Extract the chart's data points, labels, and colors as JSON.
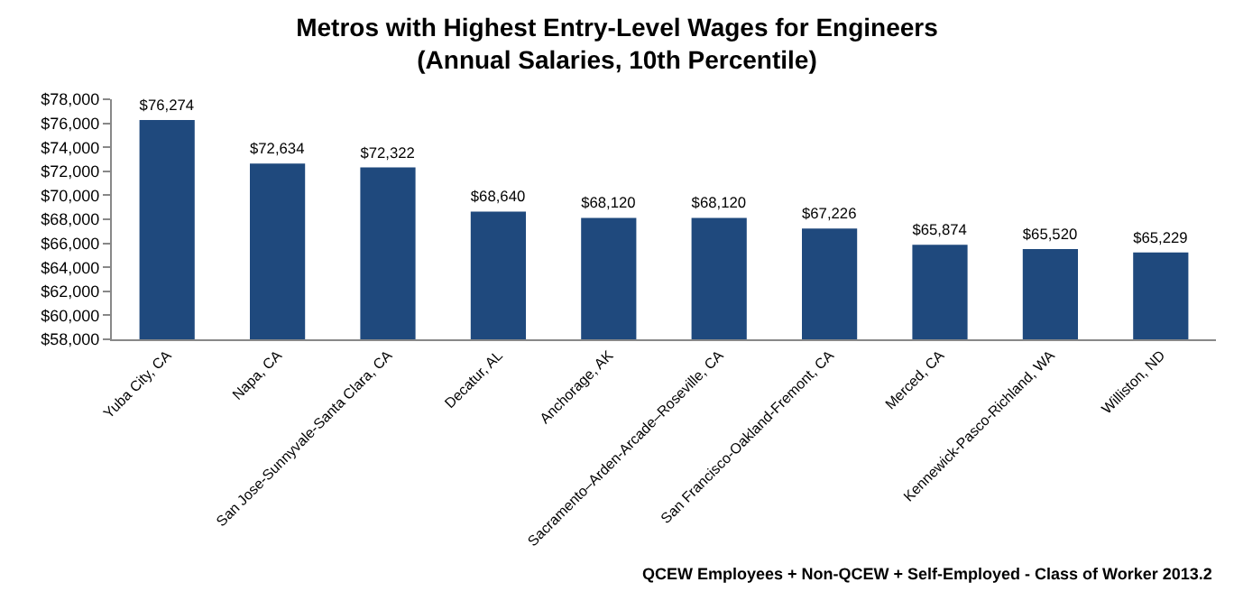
{
  "chart_data": {
    "type": "bar",
    "title": "Metros with Highest Entry-Level Wages for Engineers\n(Annual Salaries, 10th Percentile)",
    "categories": [
      "Yuba City, CA",
      "Napa, CA",
      "San Jose-Sunnyvale-Santa Clara, CA",
      "Decatur, AL",
      "Anchorage, AK",
      "Sacramento–Arden-Arcade–Roseville, CA",
      "San Francisco-Oakland-Fremont, CA",
      "Merced, CA",
      "Kennewick-Pasco-Richland, WA",
      "Williston, ND"
    ],
    "values": [
      76274,
      72634,
      72322,
      68640,
      68120,
      68120,
      67226,
      65874,
      65520,
      65229
    ],
    "value_labels": [
      "$76,274",
      "$72,634",
      "$72,322",
      "$68,640",
      "$68,120",
      "$68,120",
      "$67,226",
      "$65,874",
      "$65,520",
      "$65,229"
    ],
    "color": "#1f497d",
    "ylim": [
      58000,
      78000
    ],
    "yticks": [
      {
        "value": 58000,
        "label": "$58,000"
      },
      {
        "value": 60000,
        "label": "$60,000"
      },
      {
        "value": 62000,
        "label": "$62,000"
      },
      {
        "value": 64000,
        "label": "$64,000"
      },
      {
        "value": 66000,
        "label": "$66,000"
      },
      {
        "value": 68000,
        "label": "$68,000"
      },
      {
        "value": 70000,
        "label": "$70,000"
      },
      {
        "value": 72000,
        "label": "$72,000"
      },
      {
        "value": 74000,
        "label": "$74,000"
      },
      {
        "value": 76000,
        "label": "$76,000"
      },
      {
        "value": 78000,
        "label": "$78,000"
      }
    ],
    "annotations": [
      "QCEW Employees + Non-QCEW + Self-Employed - Class of Worker 2013.2"
    ]
  }
}
